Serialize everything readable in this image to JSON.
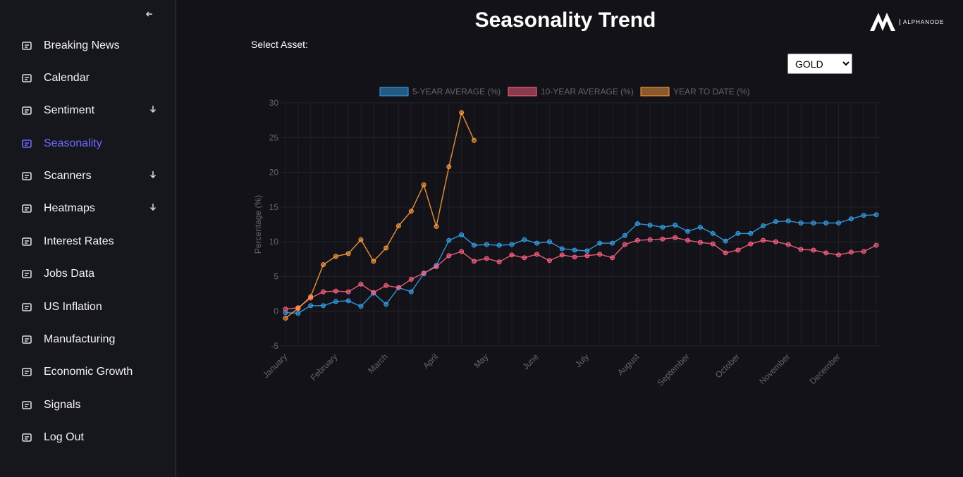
{
  "sidebar": {
    "items": [
      {
        "label": "Breaking News"
      },
      {
        "label": "Calendar"
      },
      {
        "label": "Sentiment"
      },
      {
        "label": "Seasonality"
      },
      {
        "label": "Scanners"
      },
      {
        "label": "Heatmaps"
      },
      {
        "label": "Interest Rates"
      },
      {
        "label": "Jobs Data"
      },
      {
        "label": "US Inflation"
      },
      {
        "label": "Manufacturing"
      },
      {
        "label": "Economic Growth"
      },
      {
        "label": "Signals"
      },
      {
        "label": "Log Out"
      }
    ]
  },
  "header": {
    "title": "Seasonality Trend",
    "logo": "ALPHANODE"
  },
  "asset": {
    "label": "Select Asset:",
    "selected": "GOLD"
  },
  "chart_data": {
    "type": "line",
    "y_label": "Percentage (%)",
    "categories": [
      "January",
      null,
      null,
      null,
      "February",
      null,
      null,
      null,
      "March",
      null,
      null,
      null,
      "April",
      null,
      null,
      null,
      "May",
      null,
      null,
      null,
      "June",
      null,
      null,
      null,
      "July",
      null,
      null,
      null,
      "August",
      null,
      null,
      null,
      "September",
      null,
      null,
      null,
      "October",
      null,
      null,
      null,
      "November",
      null,
      null,
      null,
      "December",
      null,
      null,
      null
    ],
    "series": [
      {
        "name": "5-YEAR AVERAGE (%)",
        "color": "#36a2eb",
        "values": [
          -0.2,
          -0.3,
          0.8,
          0.8,
          1.4,
          1.5,
          0.7,
          2.6,
          1.0,
          3.4,
          2.8,
          5.4,
          6.6,
          10.2,
          11.0,
          9.5,
          9.6,
          9.5,
          9.6,
          10.3,
          9.8,
          10.0,
          9.0,
          8.8,
          8.7,
          9.8,
          9.8,
          10.9,
          12.6,
          12.4,
          12.1,
          12.4,
          11.5,
          12.1,
          11.2,
          10.1,
          11.2,
          11.2,
          12.3,
          12.9,
          13.0,
          12.7,
          12.7,
          12.7,
          12.7,
          13.3,
          13.8,
          13.9
        ]
      },
      {
        "name": "10-YEAR AVERAGE (%)",
        "color": "#ff6384",
        "values": [
          0.3,
          0.5,
          1.9,
          2.8,
          2.9,
          2.8,
          3.9,
          2.7,
          3.7,
          3.4,
          4.6,
          5.5,
          6.4,
          8.0,
          8.6,
          7.2,
          7.6,
          7.1,
          8.1,
          7.7,
          8.2,
          7.3,
          8.1,
          7.8,
          8.0,
          8.2,
          7.7,
          9.6,
          10.2,
          10.3,
          10.4,
          10.6,
          10.2,
          9.9,
          9.7,
          8.4,
          8.8,
          9.7,
          10.2,
          10.0,
          9.6,
          8.9,
          8.8,
          8.4,
          8.1,
          8.5,
          8.6,
          9.5
        ]
      },
      {
        "name": "YEAR TO DATE (%)",
        "color": "#ff9f40",
        "values": [
          -1.0,
          0.4,
          2.1,
          6.7,
          7.9,
          8.3,
          10.3,
          7.2,
          9.1,
          12.3,
          14.4,
          18.2,
          12.2,
          20.8,
          28.6,
          24.6,
          null,
          null,
          null,
          null,
          null,
          null,
          null,
          null,
          null,
          null,
          null,
          null,
          null,
          null,
          null,
          null,
          null,
          null,
          null,
          null,
          null,
          null,
          null,
          null,
          null,
          null,
          null,
          null,
          null,
          null,
          null,
          null
        ]
      }
    ],
    "ylim": [
      -5,
      30
    ],
    "yticks": [
      -5,
      0,
      5,
      10,
      15,
      20,
      25,
      30
    ],
    "grid": true
  }
}
